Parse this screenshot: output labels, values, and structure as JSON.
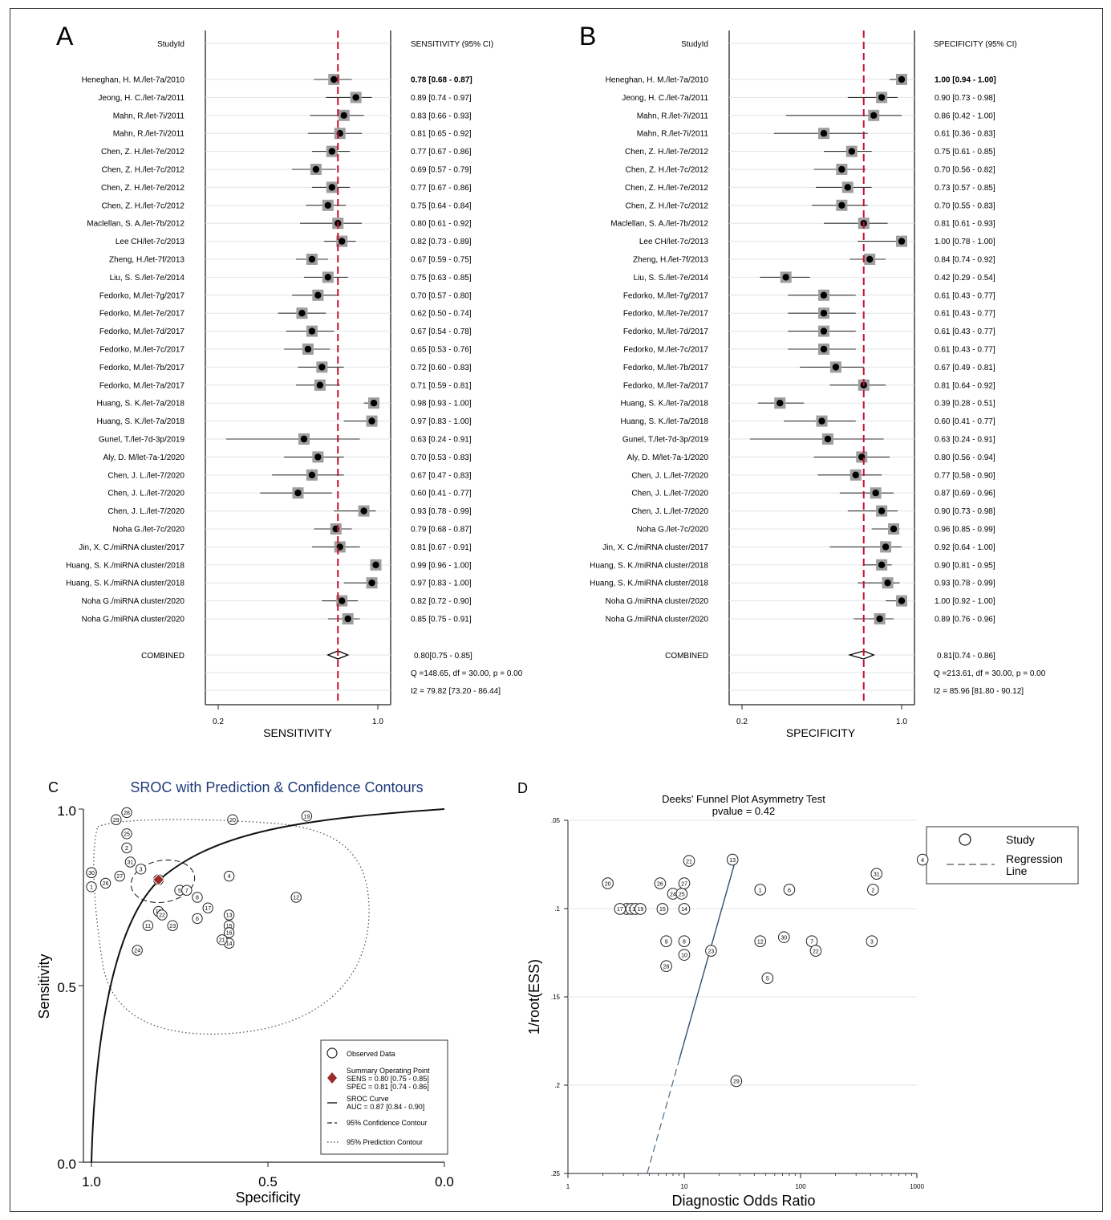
{
  "panel_a": {
    "letter": "A",
    "header_study": "StudyId",
    "header_ci": "SENSITIVITY (95% CI)",
    "xlabel": "SENSITIVITY",
    "ticks": [
      "0.2",
      "1.0"
    ],
    "combined_label": "COMBINED",
    "combined_text": "0.80[0.75 - 0.85]",
    "q_text": "Q =148.65, df = 30.00, p =  0.00",
    "i2_text": "I2 = 79.82 [73.20 - 86.44]"
  },
  "panel_b": {
    "letter": "B",
    "header_study": "StudyId",
    "header_ci": "SPECIFICITY (95% CI)",
    "xlabel": "SPECIFICITY",
    "ticks": [
      "0.2",
      "1.0"
    ],
    "combined_label": "COMBINED",
    "combined_text": "0.81[0.74 - 0.86]",
    "q_text": "Q =213.61, df = 30.00, p =  0.00",
    "i2_text": "I2 = 85.96 [81.80 - 90.12]"
  },
  "panel_c": {
    "letter": "C",
    "title": "SROC with Prediction & Confidence Contours",
    "xlabel": "Specificity",
    "ylabel": "Sensitivity",
    "xticks": [
      "1.0",
      "0.5",
      "0.0"
    ],
    "yticks": [
      "1.0",
      "0.5",
      "0.0"
    ],
    "legend": {
      "observed": "Observed Data",
      "summary_title": "Summary Operating Point",
      "summary_sens": "SENS = 0.80 [0.75 - 0.85]",
      "summary_spec": "SPEC = 0.81 [0.74 - 0.86]",
      "sroc_title": "SROC Curve",
      "sroc_auc": "AUC = 0.87 [0.84 - 0.90]",
      "conf": "95% Confidence Contour",
      "pred": "95% Prediction Contour"
    }
  },
  "panel_d": {
    "letter": "D",
    "title": "Deeks' Funnel Plot Asymmetry Test",
    "subtitle": "pvalue  =   0.42",
    "xlabel": "Diagnostic Odds Ratio",
    "ylabel": "1/root(ESS)",
    "xticks": [
      "1",
      "10",
      "100",
      "1000"
    ],
    "yticks": [
      ".05",
      ".1",
      ".15",
      ".2",
      ".25"
    ],
    "legend_study": "Study",
    "legend_regression_1": "Regression",
    "legend_regression_2": "Line"
  },
  "chart_data": [
    {
      "type": "forest",
      "panel": "A",
      "title": "",
      "xlabel": "SENSITIVITY",
      "xlim": [
        0.2,
        1.0
      ],
      "reference_line": 0.8,
      "studies": [
        "Heneghan, H. M./let-7a/2010",
        "Jeong, H. C./let-7a/2011",
        "Mahn, R./let-7i/2011",
        "Mahn, R./let-7i/2011",
        "Chen, Z. H./let-7e/2012",
        "Chen, Z. H./let-7c/2012",
        "Chen, Z. H./let-7e/2012",
        "Chen, Z. H./let-7c/2012",
        "Maclellan, S. A./let-7b/2012",
        "Lee CH/let-7c/2013",
        "Zheng, H./let-7f/2013",
        "Liu, S. S./let-7e/2014",
        "Fedorko, M./let-7g/2017",
        "Fedorko, M./let-7e/2017",
        "Fedorko, M./let-7d/2017",
        "Fedorko, M./let-7c/2017",
        "Fedorko, M./let-7b/2017",
        "Fedorko, M./let-7a/2017",
        "Huang, S. K./let-7a/2018",
        "Huang, S. K./let-7a/2018",
        "Gunel, T./let-7d-3p/2019",
        "Aly, D. M/let-7a-1/2020",
        "Chen, J. L./let-7/2020",
        "Chen, J. L./let-7/2020",
        "Chen, J. L./let-7/2020",
        "Noha G./let-7c/2020",
        "Jin, X. C./miRNA cluster/2017",
        "Huang, S. K./miRNA cluster/2018",
        "Huang, S. K./miRNA cluster/2018",
        "Noha G./miRNA cluster/2020",
        "Noha G./miRNA cluster/2020"
      ],
      "estimates": [
        0.78,
        0.89,
        0.83,
        0.81,
        0.77,
        0.69,
        0.77,
        0.75,
        0.8,
        0.82,
        0.67,
        0.75,
        0.7,
        0.62,
        0.67,
        0.65,
        0.72,
        0.71,
        0.98,
        0.97,
        0.63,
        0.7,
        0.67,
        0.6,
        0.93,
        0.79,
        0.81,
        0.99,
        0.97,
        0.82,
        0.85
      ],
      "lower": [
        0.68,
        0.74,
        0.66,
        0.65,
        0.67,
        0.57,
        0.67,
        0.64,
        0.61,
        0.73,
        0.59,
        0.63,
        0.57,
        0.5,
        0.54,
        0.53,
        0.6,
        0.59,
        0.93,
        0.83,
        0.24,
        0.53,
        0.47,
        0.41,
        0.78,
        0.68,
        0.67,
        0.96,
        0.83,
        0.72,
        0.75
      ],
      "upper": [
        0.87,
        0.97,
        0.93,
        0.92,
        0.86,
        0.79,
        0.86,
        0.84,
        0.92,
        0.89,
        0.75,
        0.85,
        0.8,
        0.74,
        0.78,
        0.76,
        0.83,
        0.81,
        1.0,
        1.0,
        0.91,
        0.83,
        0.83,
        0.77,
        0.99,
        0.87,
        0.91,
        1.0,
        1.0,
        0.9,
        0.91
      ],
      "ci_labels": [
        "0.78 [0.68 - 0.87]",
        "0.89 [0.74 - 0.97]",
        "0.83 [0.66 - 0.93]",
        "0.81 [0.65 - 0.92]",
        "0.77 [0.67 - 0.86]",
        "0.69 [0.57 - 0.79]",
        "0.77 [0.67 - 0.86]",
        "0.75 [0.64 - 0.84]",
        "0.80 [0.61 - 0.92]",
        "0.82 [0.73 - 0.89]",
        "0.67 [0.59 - 0.75]",
        "0.75 [0.63 - 0.85]",
        "0.70 [0.57 - 0.80]",
        "0.62 [0.50 - 0.74]",
        "0.67 [0.54 - 0.78]",
        "0.65 [0.53 - 0.76]",
        "0.72 [0.60 - 0.83]",
        "0.71 [0.59 - 0.81]",
        "0.98 [0.93 - 1.00]",
        "0.97 [0.83 - 1.00]",
        "0.63 [0.24 - 0.91]",
        "0.70 [0.53 - 0.83]",
        "0.67 [0.47 - 0.83]",
        "0.60 [0.41 - 0.77]",
        "0.93 [0.78 - 0.99]",
        "0.79 [0.68 - 0.87]",
        "0.81 [0.67 - 0.91]",
        "0.99 [0.96 - 1.00]",
        "0.97 [0.83 - 1.00]",
        "0.82 [0.72 - 0.90]",
        "0.85 [0.75 - 0.91]"
      ],
      "combined": {
        "estimate": 0.8,
        "lower": 0.75,
        "upper": 0.85
      }
    },
    {
      "type": "forest",
      "panel": "B",
      "title": "",
      "xlabel": "SPECIFICITY",
      "xlim": [
        0.2,
        1.0
      ],
      "reference_line": 0.81,
      "studies": [
        "Heneghan, H. M./let-7a/2010",
        "Jeong, H. C./let-7a/2011",
        "Mahn, R./let-7i/2011",
        "Mahn, R./let-7i/2011",
        "Chen, Z. H./let-7e/2012",
        "Chen, Z. H./let-7c/2012",
        "Chen, Z. H./let-7e/2012",
        "Chen, Z. H./let-7c/2012",
        "Maclellan, S. A./let-7b/2012",
        "Lee CH/let-7c/2013",
        "Zheng, H./let-7f/2013",
        "Liu, S. S./let-7e/2014",
        "Fedorko, M./let-7g/2017",
        "Fedorko, M./let-7e/2017",
        "Fedorko, M./let-7d/2017",
        "Fedorko, M./let-7c/2017",
        "Fedorko, M./let-7b/2017",
        "Fedorko, M./let-7a/2017",
        "Huang, S. K./let-7a/2018",
        "Huang, S. K./let-7a/2018",
        "Gunel, T./let-7d-3p/2019",
        "Aly, D. M/let-7a-1/2020",
        "Chen, J. L./let-7/2020",
        "Chen, J. L./let-7/2020",
        "Chen, J. L./let-7/2020",
        "Noha G./let-7c/2020",
        "Jin, X. C./miRNA cluster/2017",
        "Huang, S. K./miRNA cluster/2018",
        "Huang, S. K./miRNA cluster/2018",
        "Noha G./miRNA cluster/2020",
        "Noha G./miRNA cluster/2020"
      ],
      "estimates": [
        1.0,
        0.9,
        0.86,
        0.61,
        0.75,
        0.7,
        0.73,
        0.7,
        0.81,
        1.0,
        0.84,
        0.42,
        0.61,
        0.61,
        0.61,
        0.61,
        0.67,
        0.81,
        0.39,
        0.6,
        0.63,
        0.8,
        0.77,
        0.87,
        0.9,
        0.96,
        0.92,
        0.9,
        0.93,
        1.0,
        0.89
      ],
      "lower": [
        0.94,
        0.73,
        0.42,
        0.36,
        0.61,
        0.56,
        0.57,
        0.55,
        0.61,
        0.78,
        0.74,
        0.29,
        0.43,
        0.43,
        0.43,
        0.43,
        0.49,
        0.64,
        0.28,
        0.41,
        0.24,
        0.56,
        0.58,
        0.69,
        0.73,
        0.85,
        0.64,
        0.81,
        0.78,
        0.92,
        0.76
      ],
      "upper": [
        1.0,
        0.98,
        1.0,
        0.83,
        0.85,
        0.82,
        0.85,
        0.83,
        0.93,
        1.0,
        0.92,
        0.54,
        0.77,
        0.77,
        0.77,
        0.77,
        0.81,
        0.92,
        0.51,
        0.77,
        0.91,
        0.94,
        0.9,
        0.96,
        0.98,
        0.99,
        1.0,
        0.95,
        0.99,
        1.0,
        0.96
      ],
      "ci_labels": [
        "1.00 [0.94 - 1.00]",
        "0.90 [0.73 - 0.98]",
        "0.86 [0.42 - 1.00]",
        "0.61 [0.36 - 0.83]",
        "0.75 [0.61 - 0.85]",
        "0.70 [0.56 - 0.82]",
        "0.73 [0.57 - 0.85]",
        "0.70 [0.55 - 0.83]",
        "0.81 [0.61 - 0.93]",
        "1.00 [0.78 - 1.00]",
        "0.84 [0.74 - 0.92]",
        "0.42 [0.29 - 0.54]",
        "0.61 [0.43 - 0.77]",
        "0.61 [0.43 - 0.77]",
        "0.61 [0.43 - 0.77]",
        "0.61 [0.43 - 0.77]",
        "0.67 [0.49 - 0.81]",
        "0.81 [0.64 - 0.92]",
        "0.39 [0.28 - 0.51]",
        "0.60 [0.41 - 0.77]",
        "0.63 [0.24 - 0.91]",
        "0.80 [0.56 - 0.94]",
        "0.77 [0.58 - 0.90]",
        "0.87 [0.69 - 0.96]",
        "0.90 [0.73 - 0.98]",
        "0.96 [0.85 - 0.99]",
        "0.92 [0.64 - 1.00]",
        "0.90 [0.81 - 0.95]",
        "0.93 [0.78 - 0.99]",
        "1.00 [0.92 - 1.00]",
        "0.89 [0.76 - 0.96]"
      ],
      "combined": {
        "estimate": 0.81,
        "lower": 0.74,
        "upper": 0.86
      }
    },
    {
      "type": "scatter",
      "panel": "C",
      "title": "SROC with Prediction & Confidence Contours",
      "xlabel": "Specificity",
      "ylabel": "Sensitivity",
      "xlim": [
        1.0,
        0.0
      ],
      "ylim": [
        0.0,
        1.0
      ],
      "points": [
        {
          "id": "1",
          "spec": 1.0,
          "sens": 0.78
        },
        {
          "id": "2",
          "spec": 0.9,
          "sens": 0.89
        },
        {
          "id": "3",
          "spec": 0.86,
          "sens": 0.83
        },
        {
          "id": "4",
          "spec": 0.61,
          "sens": 0.81
        },
        {
          "id": "5",
          "spec": 0.75,
          "sens": 0.77
        },
        {
          "id": "6",
          "spec": 0.7,
          "sens": 0.69
        },
        {
          "id": "7",
          "spec": 0.73,
          "sens": 0.77
        },
        {
          "id": "8",
          "spec": 0.7,
          "sens": 0.75
        },
        {
          "id": "9",
          "spec": 0.81,
          "sens": 0.8
        },
        {
          "id": "10",
          "spec": 1.0,
          "sens": 0.82
        },
        {
          "id": "11",
          "spec": 0.84,
          "sens": 0.67
        },
        {
          "id": "12",
          "spec": 0.42,
          "sens": 0.75
        },
        {
          "id": "13",
          "spec": 0.61,
          "sens": 0.7
        },
        {
          "id": "14",
          "spec": 0.61,
          "sens": 0.62
        },
        {
          "id": "15",
          "spec": 0.61,
          "sens": 0.67
        },
        {
          "id": "16",
          "spec": 0.61,
          "sens": 0.65
        },
        {
          "id": "17",
          "spec": 0.67,
          "sens": 0.72
        },
        {
          "id": "18",
          "spec": 0.81,
          "sens": 0.71
        },
        {
          "id": "19",
          "spec": 0.39,
          "sens": 0.98
        },
        {
          "id": "20",
          "spec": 0.6,
          "sens": 0.97
        },
        {
          "id": "21",
          "spec": 0.63,
          "sens": 0.63
        },
        {
          "id": "22",
          "spec": 0.8,
          "sens": 0.7
        },
        {
          "id": "23",
          "spec": 0.77,
          "sens": 0.67
        },
        {
          "id": "24",
          "spec": 0.87,
          "sens": 0.6
        },
        {
          "id": "25",
          "spec": 0.9,
          "sens": 0.93
        },
        {
          "id": "26",
          "spec": 0.96,
          "sens": 0.79
        },
        {
          "id": "27",
          "spec": 0.92,
          "sens": 0.81
        },
        {
          "id": "28",
          "spec": 0.9,
          "sens": 0.99
        },
        {
          "id": "29",
          "spec": 0.93,
          "sens": 0.97
        },
        {
          "id": "30",
          "spec": 1.0,
          "sens": 0.82
        },
        {
          "id": "31",
          "spec": 0.89,
          "sens": 0.85
        }
      ],
      "summary_point": {
        "spec": 0.81,
        "sens": 0.8
      },
      "auc": 0.87
    },
    {
      "type": "scatter",
      "panel": "D",
      "title": "Deeks' Funnel Plot Asymmetry Test",
      "xlabel": "Diagnostic Odds Ratio",
      "ylabel": "1/root(ESS)",
      "x_scale": "log",
      "xlim": [
        1,
        1000
      ],
      "ylim": [
        0.25,
        0.05
      ],
      "points": [
        {
          "id": "1",
          "x": 45,
          "y": 0.0893
        },
        {
          "id": "2",
          "x": 420,
          "y": 0.0893
        },
        {
          "id": "3",
          "x": 410,
          "y": 0.1185
        },
        {
          "id": "4",
          "x": 1120,
          "y": 0.0723
        },
        {
          "id": "5",
          "x": 52,
          "y": 0.1394
        },
        {
          "id": "6",
          "x": 80,
          "y": 0.0893
        },
        {
          "id": "7",
          "x": 125,
          "y": 0.1185
        },
        {
          "id": "8",
          "x": 10,
          "y": 0.1185
        },
        {
          "id": "9",
          "x": 7,
          "y": 0.1185
        },
        {
          "id": "10",
          "x": 10,
          "y": 0.1262
        },
        {
          "id": "11",
          "x": 3.2,
          "y": 0.1002
        },
        {
          "id": "12",
          "x": 45,
          "y": 0.1185
        },
        {
          "id": "13",
          "x": 26,
          "y": 0.0723
        },
        {
          "id": "14",
          "x": 10,
          "y": 0.1002
        },
        {
          "id": "15",
          "x": 6.5,
          "y": 0.1002
        },
        {
          "id": "16",
          "x": 3.5,
          "y": 0.1002
        },
        {
          "id": "17",
          "x": 2.8,
          "y": 0.1002
        },
        {
          "id": "18",
          "x": 3.8,
          "y": 0.1002
        },
        {
          "id": "19",
          "x": 4.2,
          "y": 0.1002
        },
        {
          "id": "20",
          "x": 2.2,
          "y": 0.0857
        },
        {
          "id": "21",
          "x": 11,
          "y": 0.073
        },
        {
          "id": "22",
          "x": 135,
          "y": 0.1239
        },
        {
          "id": "23",
          "x": 17,
          "y": 0.1239
        },
        {
          "id": "24",
          "x": 8,
          "y": 0.0916
        },
        {
          "id": "25",
          "x": 9.5,
          "y": 0.0916
        },
        {
          "id": "26",
          "x": 6.2,
          "y": 0.0857
        },
        {
          "id": "27",
          "x": 10,
          "y": 0.0857
        },
        {
          "id": "28",
          "x": 7,
          "y": 0.1326
        },
        {
          "id": "29",
          "x": 28,
          "y": 0.1977
        },
        {
          "id": "30",
          "x": 72,
          "y": 0.1162
        },
        {
          "id": "31",
          "x": 450,
          "y": 0.0803
        }
      ],
      "regression_line": [
        {
          "x": 4.8,
          "y": 0.25
        },
        {
          "x": 28,
          "y": 0.071
        }
      ],
      "pvalue": 0.42
    }
  ],
  "colors": {
    "reference": "#c8102e",
    "summary": "#9b2a2a",
    "title_blue": "#1f3b7a",
    "regression": "#2f4f6f"
  }
}
